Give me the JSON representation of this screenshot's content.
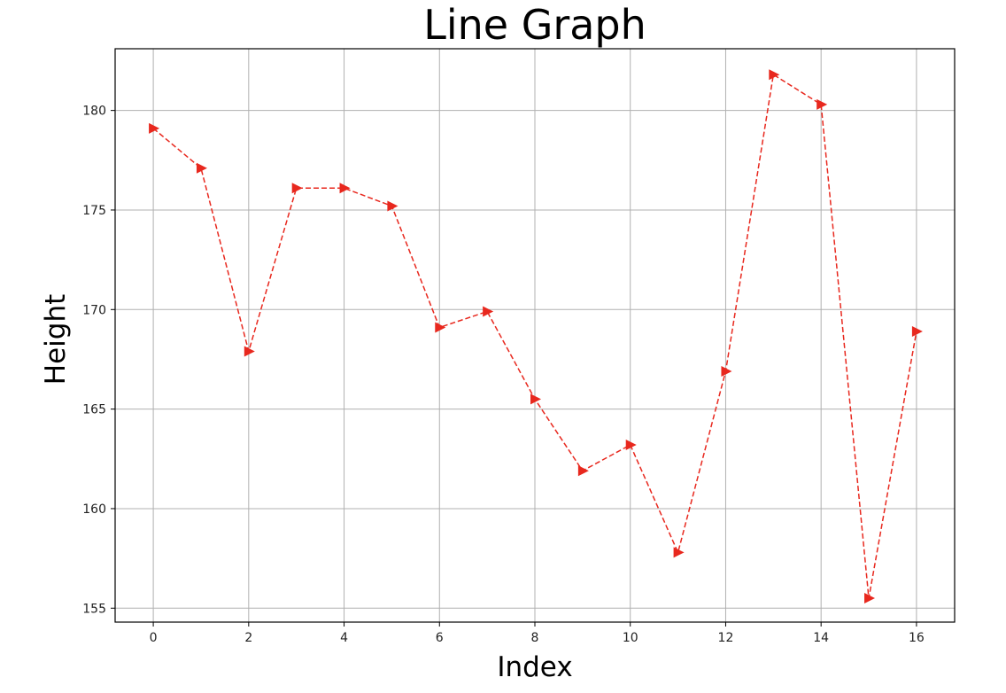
{
  "chart_data": {
    "type": "line",
    "title": "Line Graph",
    "xlabel": "Index",
    "ylabel": "Height",
    "xlim": [
      -0.8,
      16.8
    ],
    "ylim": [
      154.3,
      183.1
    ],
    "xticks": [
      0,
      2,
      4,
      6,
      8,
      10,
      12,
      14,
      16
    ],
    "yticks": [
      155,
      160,
      165,
      170,
      175,
      180
    ],
    "grid": true,
    "marker": "right-triangle",
    "line_style": "dashed",
    "color": "#e8281e",
    "series": [
      {
        "x": [
          0,
          1,
          2,
          3,
          4,
          5,
          6,
          7,
          8,
          9,
          10,
          11,
          12,
          13,
          14,
          15,
          16
        ],
        "y": [
          179.1,
          177.1,
          167.9,
          176.1,
          176.1,
          175.2,
          169.1,
          169.9,
          165.5,
          161.9,
          163.2,
          157.8,
          166.9,
          181.8,
          180.3,
          155.5,
          168.9
        ]
      }
    ]
  }
}
